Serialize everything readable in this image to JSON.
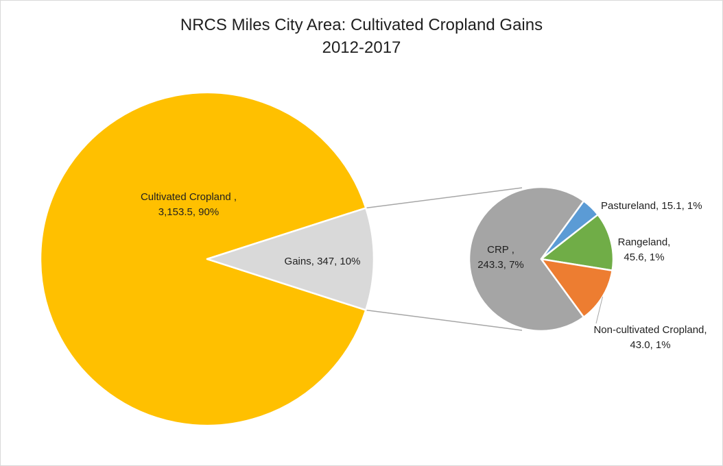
{
  "chart_data": {
    "type": "pie",
    "subtype": "pie-of-pie",
    "title_lines": [
      "NRCS Miles City Area: Cultivated Cropland Gains",
      "2012-2017"
    ],
    "primary": {
      "slices": [
        {
          "name": "Cultivated Cropland",
          "value": 3153.5,
          "percent": 90,
          "color": "#ffc000",
          "label_lines": [
            "Cultivated Cropland ,",
            "3,153.5, 90%"
          ]
        },
        {
          "name": "Gains",
          "value": 347,
          "percent": 10,
          "color": "#d9d9d9",
          "label_lines": [
            "Gains, 347, 10%"
          ]
        }
      ]
    },
    "secondary": {
      "slices": [
        {
          "name": "CRP",
          "value": 243.3,
          "percent": 7,
          "color": "#a5a5a5",
          "label_lines": [
            "CRP ,",
            "243.3, 7%"
          ]
        },
        {
          "name": "Pastureland",
          "value": 15.1,
          "percent": 1,
          "color": "#5b9bd5",
          "label_lines": [
            "Pastureland, 15.1, 1%"
          ]
        },
        {
          "name": "Rangeland",
          "value": 45.6,
          "percent": 1,
          "color": "#70ad47",
          "label_lines": [
            "Rangeland,",
            "45.6, 1%"
          ]
        },
        {
          "name": "Non-cultivated Cropland",
          "value": 43.0,
          "percent": 1,
          "color": "#ed7d31",
          "label_lines": [
            "Non-cultivated Cropland,",
            "43.0, 1%"
          ]
        }
      ]
    },
    "connector_color": "#a6a6a6"
  }
}
